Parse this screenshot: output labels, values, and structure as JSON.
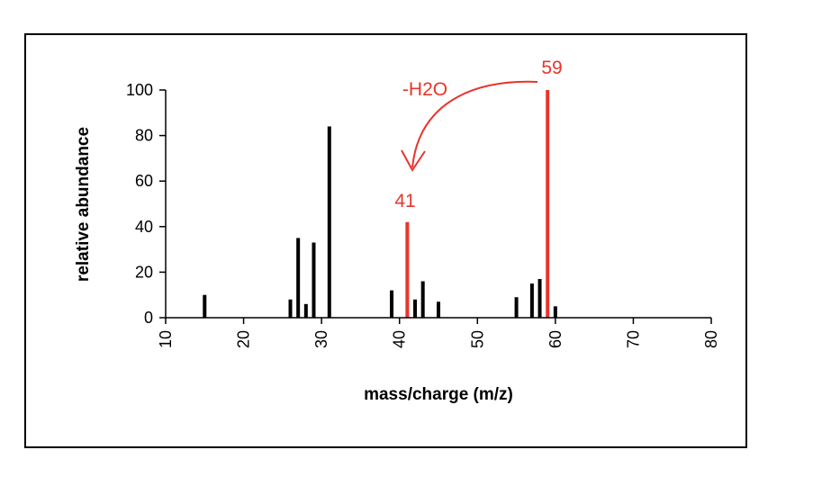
{
  "chart_data": {
    "type": "bar",
    "title": "",
    "xlabel": "mass/charge (m/z)",
    "ylabel": "relative abundance",
    "xlim": [
      10,
      80
    ],
    "ylim": [
      0,
      100
    ],
    "xticks": [
      10,
      20,
      30,
      40,
      50,
      60,
      70,
      80
    ],
    "yticks": [
      0,
      20,
      40,
      60,
      80,
      100
    ],
    "grid": false,
    "legend": "none",
    "colors": {
      "default_bar": "#000000",
      "highlight_bar": "#e8352b",
      "annotation": "#e8352b"
    },
    "peaks": [
      {
        "x": 15,
        "y": 10
      },
      {
        "x": 26,
        "y": 8
      },
      {
        "x": 27,
        "y": 35
      },
      {
        "x": 28,
        "y": 6
      },
      {
        "x": 29,
        "y": 33
      },
      {
        "x": 31,
        "y": 84
      },
      {
        "x": 39,
        "y": 12
      },
      {
        "x": 41,
        "y": 42,
        "highlight": true
      },
      {
        "x": 42,
        "y": 8
      },
      {
        "x": 43,
        "y": 16
      },
      {
        "x": 45,
        "y": 7
      },
      {
        "x": 55,
        "y": 9
      },
      {
        "x": 57,
        "y": 15
      },
      {
        "x": 58,
        "y": 17
      },
      {
        "x": 59,
        "y": 100,
        "highlight": true
      },
      {
        "x": 60,
        "y": 5
      }
    ],
    "annotations": [
      {
        "text": "59",
        "x": 59,
        "kind": "peak-label"
      },
      {
        "text": "41",
        "x": 41,
        "kind": "peak-label"
      },
      {
        "text": "-H2O",
        "kind": "loss-label",
        "from_x": 59,
        "to_x": 41
      }
    ]
  }
}
